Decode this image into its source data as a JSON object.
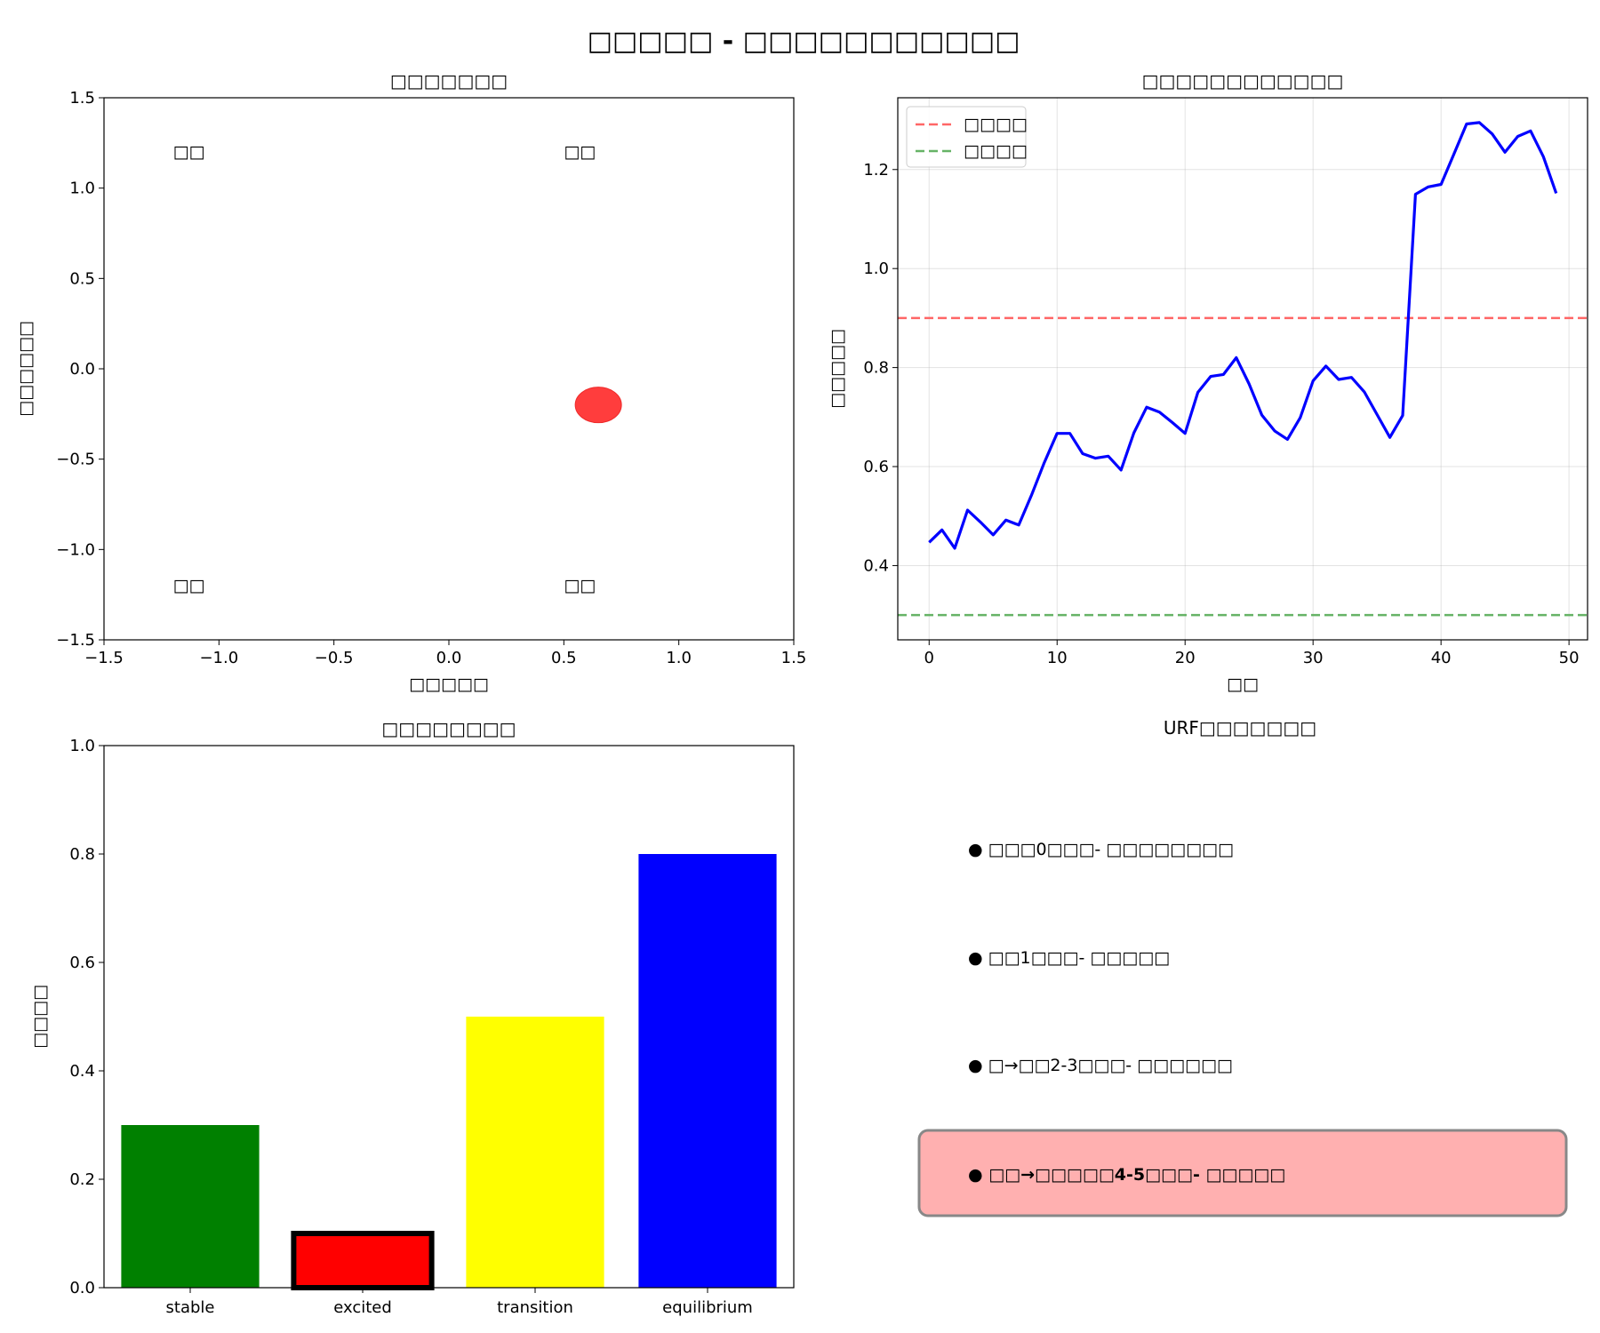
{
  "figure": {
    "suptitle": "□□□□□ - □□□□□□□□□□□"
  },
  "chart_data": [
    {
      "type": "scatter",
      "title": "□□□□□□□",
      "xlabel": "□□□□□",
      "ylabel": "□□□□□□",
      "xlim": [
        -1.5,
        1.5
      ],
      "ylim": [
        -1.5,
        1.5
      ],
      "xticks": [
        -1.5,
        -1.0,
        -0.5,
        0.0,
        0.5,
        1.0,
        1.5
      ],
      "yticks": [
        -1.5,
        -1.0,
        -0.5,
        0.0,
        0.5,
        1.0,
        1.5
      ],
      "grid": false,
      "points": [
        {
          "x": 0.65,
          "y": -0.2,
          "color": "#ff3333"
        }
      ],
      "annotations": [
        {
          "text": "□□",
          "x": -1.2,
          "y": 1.2,
          "color": "#ffff00"
        },
        {
          "text": "□□",
          "x": 0.5,
          "y": 1.2,
          "color": "#ff0000"
        },
        {
          "text": "□□",
          "x": -1.2,
          "y": -1.2,
          "color": "#008000"
        },
        {
          "text": "□□",
          "x": 0.5,
          "y": -1.2,
          "color": "#0000ff"
        }
      ]
    },
    {
      "type": "line",
      "title": "□□□□□□□□□□□□",
      "xlabel": "□□",
      "ylabel": "□□□□□",
      "xlim": [
        -2.45,
        51.45
      ],
      "ylim": [
        0.25,
        1.345
      ],
      "xticks": [
        0,
        10,
        20,
        30,
        40,
        50
      ],
      "yticks": [
        0.4,
        0.6,
        0.8,
        1.0,
        1.2
      ],
      "grid": true,
      "legend": "top-left",
      "x": [
        0,
        1,
        2,
        3,
        4,
        5,
        6,
        7,
        8,
        9,
        10,
        11,
        12,
        13,
        14,
        15,
        16,
        17,
        18,
        19,
        20,
        21,
        22,
        23,
        24,
        25,
        26,
        27,
        28,
        29,
        30,
        31,
        32,
        33,
        34,
        35,
        36,
        37,
        38,
        39,
        40,
        41,
        42,
        43,
        44,
        45,
        46,
        47,
        48,
        49
      ],
      "series": [
        {
          "color": "#0000ff",
          "values": [
            0.447,
            0.472,
            0.435,
            0.512,
            0.488,
            0.462,
            0.492,
            0.482,
            0.542,
            0.608,
            0.667,
            0.667,
            0.626,
            0.617,
            0.621,
            0.593,
            0.668,
            0.72,
            0.71,
            0.689,
            0.667,
            0.75,
            0.782,
            0.786,
            0.82,
            0.767,
            0.704,
            0.672,
            0.655,
            0.699,
            0.773,
            0.803,
            0.776,
            0.78,
            0.751,
            0.705,
            0.659,
            0.703,
            1.15,
            1.165,
            1.17,
            1.231,
            1.292,
            1.295,
            1.272,
            1.235,
            1.267,
            1.278,
            1.226,
            1.152
          ]
        }
      ],
      "hlines": [
        {
          "name": "□□□□",
          "y": 0.9,
          "color": "#ff6666"
        },
        {
          "name": "□□□□",
          "y": 0.3,
          "color": "#66b366"
        }
      ]
    },
    {
      "type": "bar",
      "title": "□□□□□□□□",
      "xlabel": "",
      "ylabel": "□□□□",
      "ylim": [
        0,
        1.0
      ],
      "yticks": [
        0.0,
        0.2,
        0.4,
        0.6,
        0.8,
        1.0
      ],
      "categories": [
        "stable",
        "excited",
        "transition",
        "equilibrium"
      ],
      "values": [
        0.3,
        0.1,
        0.5,
        0.8
      ],
      "colors": [
        "#008000",
        "#ff0000",
        "#ffff00",
        "#0000ff"
      ],
      "highlighted": "excited"
    }
  ],
  "legend_panel": {
    "title": "URF□□□□□□□",
    "items": [
      {
        "text": "● □□□0□□□- □□□□□□□□",
        "color": "#0000ff",
        "bold": false,
        "highlight": false
      },
      {
        "text": "● □□1□□□- □□□□□",
        "color": "#008000",
        "bold": false,
        "highlight": false
      },
      {
        "text": "● □→□□2-3□□□- □□□□□□",
        "color": "#ffff00",
        "bold": false,
        "highlight": false
      },
      {
        "text": "● □□→□□□□□4-5□□□- □□□□□",
        "color": "#000000",
        "bold": true,
        "highlight": true,
        "highlight_color": "#ffb0b0"
      }
    ]
  }
}
